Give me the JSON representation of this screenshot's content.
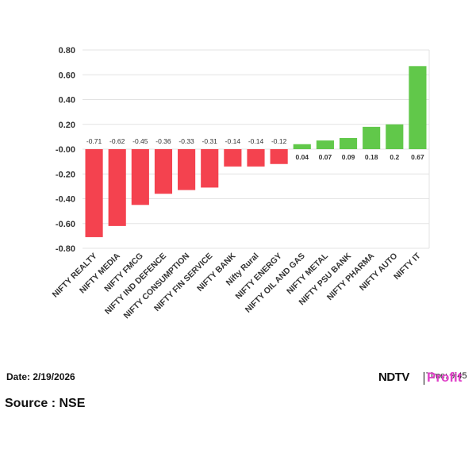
{
  "chart_data": {
    "type": "bar",
    "categories": [
      "NIFTY REALTY",
      "NIFTY MEDIA",
      "NIFTY FMCG",
      "NIFTY IND DEFENCE",
      "NIFTY CONSUMPTION",
      "NIFTY FIN SERVICE",
      "NIFTY BANK",
      "Nifty Rural",
      "NIFTY ENERGY",
      "NIFTY OIL AND GAS",
      "NIFTY METAL",
      "NIFTY PSU BANK",
      "NIFTY PHARMA",
      "NIFTY AUTO",
      "NIFTY IT"
    ],
    "values": [
      -0.71,
      -0.62,
      -0.45,
      -0.36,
      -0.33,
      -0.31,
      -0.14,
      -0.14,
      -0.12,
      0.04,
      0.07,
      0.09,
      0.18,
      0.2,
      0.67
    ],
    "value_labels": [
      "-0.71",
      "-0.62",
      "-0.45",
      "-0.36",
      "-0.33",
      "-0.31",
      "-0.14",
      "-0.14",
      "-0.12",
      "0.04",
      "0.07",
      "0.09",
      "0.18",
      "0.2",
      "0.67"
    ],
    "ylim": [
      -0.8,
      0.8
    ],
    "yticks": [
      "0.80",
      "0.60",
      "0.40",
      "0.20",
      "-0.00",
      "-0.20",
      "-0.40",
      "-0.60",
      "-0.80"
    ],
    "grid": true,
    "colors": {
      "negative": "#f4424f",
      "positive": "#61c84a",
      "grid": "#e3e3e3",
      "axis_text": "#333333"
    }
  },
  "footer": {
    "date": "Date: 2/19/2026",
    "source": "Source : NSE",
    "time": "Time: 9:45"
  },
  "brand": {
    "ndtv": "NDTV",
    "profit": "Profit"
  }
}
